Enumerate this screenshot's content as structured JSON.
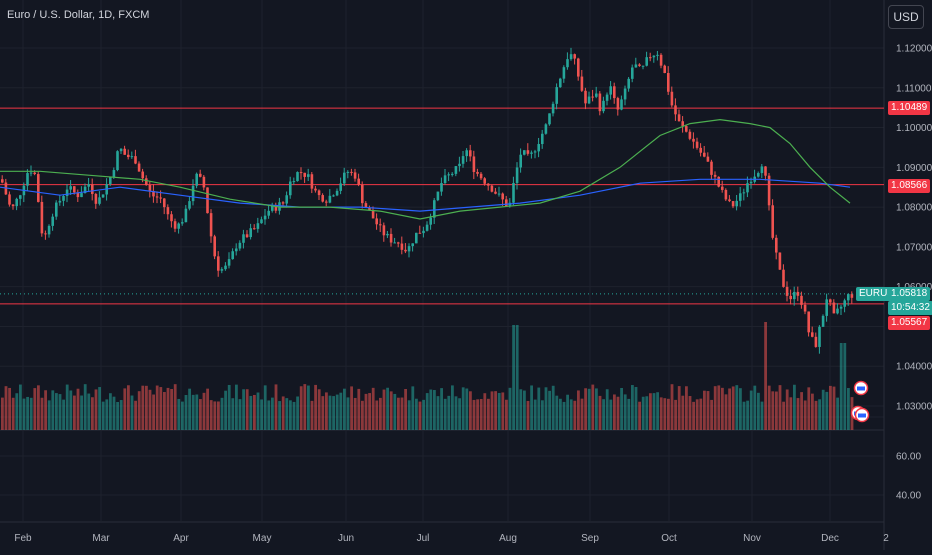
{
  "header": {
    "symbol_title": "Euro / U.S. Dollar, 1D, FXCM",
    "currency": "USD"
  },
  "colors": {
    "background": "#131722",
    "up": "#26a69a",
    "down": "#ef5350",
    "level_line": "#f23645",
    "ma_long": "#2962ff",
    "ma_short": "#4caf50"
  },
  "price_tags": {
    "level_upper": "1.10489",
    "level_middle": "1.08566",
    "level_lower": "1.05567",
    "current_symbol": "EURUSD",
    "current_price": "1.05818",
    "countdown": "10:54:32"
  },
  "chart_data": {
    "type": "candlestick",
    "x_tick_labels": [
      "Feb",
      "Mar",
      "Apr",
      "May",
      "Jun",
      "Jul",
      "Aug",
      "Sep",
      "Oct",
      "Nov",
      "Dec",
      "2"
    ],
    "price_tick_labels": [
      "1.12000",
      "1.11000",
      "1.10000",
      "1.09000",
      "1.08000",
      "1.07000",
      "1.06000",
      "1.04000",
      "1.03000"
    ],
    "volume_tick_labels": [
      "60.00",
      "40.00"
    ],
    "ylim": [
      1.0225,
      1.1265
    ],
    "volume_ylim": [
      30,
      78
    ],
    "horizontal_levels": [
      1.10489,
      1.08566,
      1.05567
    ],
    "current_price": 1.05818,
    "pivots": [
      [
        0,
        1.087
      ],
      [
        10,
        1.079
      ],
      [
        18,
        1.083
      ],
      [
        28,
        1.09
      ],
      [
        34,
        1.088
      ],
      [
        42,
        1.071
      ],
      [
        50,
        1.078
      ],
      [
        57,
        1.081
      ],
      [
        66,
        1.085
      ],
      [
        76,
        1.083
      ],
      [
        88,
        1.086
      ],
      [
        96,
        1.081
      ],
      [
        110,
        1.088
      ],
      [
        118,
        1.095
      ],
      [
        124,
        1.093
      ],
      [
        134,
        1.092
      ],
      [
        142,
        1.087
      ],
      [
        150,
        1.083
      ],
      [
        160,
        1.082
      ],
      [
        168,
        1.077
      ],
      [
        176,
        1.075
      ],
      [
        184,
        1.078
      ],
      [
        194,
        1.088
      ],
      [
        202,
        1.086
      ],
      [
        212,
        1.069
      ],
      [
        218,
        1.064
      ],
      [
        226,
        1.065
      ],
      [
        236,
        1.071
      ],
      [
        246,
        1.073
      ],
      [
        256,
        1.075
      ],
      [
        266,
        1.079
      ],
      [
        274,
        1.08
      ],
      [
        282,
        1.081
      ],
      [
        290,
        1.087
      ],
      [
        298,
        1.089
      ],
      [
        306,
        1.088
      ],
      [
        316,
        1.083
      ],
      [
        326,
        1.082
      ],
      [
        336,
        1.085
      ],
      [
        346,
        1.089
      ],
      [
        354,
        1.088
      ],
      [
        362,
        1.081
      ],
      [
        370,
        1.078
      ],
      [
        380,
        1.074
      ],
      [
        388,
        1.072
      ],
      [
        398,
        1.071
      ],
      [
        406,
        1.069
      ],
      [
        414,
        1.073
      ],
      [
        424,
        1.075
      ],
      [
        432,
        1.08
      ],
      [
        440,
        1.086
      ],
      [
        448,
        1.088
      ],
      [
        458,
        1.09
      ],
      [
        464,
        1.095
      ],
      [
        474,
        1.089
      ],
      [
        482,
        1.087
      ],
      [
        490,
        1.085
      ],
      [
        500,
        1.082
      ],
      [
        508,
        1.08
      ],
      [
        514,
        1.088
      ],
      [
        520,
        1.094
      ],
      [
        528,
        1.092
      ],
      [
        538,
        1.097
      ],
      [
        546,
        1.101
      ],
      [
        554,
        1.109
      ],
      [
        562,
        1.115
      ],
      [
        568,
        1.119
      ],
      [
        574,
        1.116
      ],
      [
        584,
        1.106
      ],
      [
        594,
        1.109
      ],
      [
        600,
        1.104
      ],
      [
        608,
        1.111
      ],
      [
        616,
        1.104
      ],
      [
        624,
        1.109
      ],
      [
        632,
        1.116
      ],
      [
        640,
        1.114
      ],
      [
        648,
        1.118
      ],
      [
        656,
        1.119
      ],
      [
        664,
        1.113
      ],
      [
        670,
        1.106
      ],
      [
        678,
        1.101
      ],
      [
        688,
        1.098
      ],
      [
        696,
        1.095
      ],
      [
        704,
        1.092
      ],
      [
        714,
        1.087
      ],
      [
        722,
        1.083
      ],
      [
        730,
        1.08
      ],
      [
        740,
        1.083
      ],
      [
        748,
        1.087
      ],
      [
        756,
        1.089
      ],
      [
        762,
        1.092
      ],
      [
        766,
        1.083
      ],
      [
        772,
        1.071
      ],
      [
        778,
        1.064
      ],
      [
        784,
        1.059
      ],
      [
        790,
        1.057
      ],
      [
        796,
        1.059
      ],
      [
        802,
        1.055
      ],
      [
        808,
        1.048
      ],
      [
        814,
        1.045
      ],
      [
        820,
        1.051
      ],
      [
        826,
        1.058
      ],
      [
        832,
        1.052
      ],
      [
        840,
        1.055
      ],
      [
        848,
        1.058
      ],
      [
        852,
        1.058
      ]
    ],
    "ma_long": [
      [
        0,
        1.085
      ],
      [
        60,
        1.083
      ],
      [
        120,
        1.085
      ],
      [
        180,
        1.083
      ],
      [
        240,
        1.081
      ],
      [
        300,
        1.08
      ],
      [
        360,
        1.08
      ],
      [
        420,
        1.079
      ],
      [
        470,
        1.08
      ],
      [
        520,
        1.081
      ],
      [
        580,
        1.083
      ],
      [
        640,
        1.086
      ],
      [
        700,
        1.087
      ],
      [
        760,
        1.087
      ],
      [
        820,
        1.086
      ],
      [
        850,
        1.085
      ]
    ],
    "ma_short": [
      [
        0,
        1.089
      ],
      [
        40,
        1.089
      ],
      [
        90,
        1.088
      ],
      [
        140,
        1.087
      ],
      [
        180,
        1.085
      ],
      [
        230,
        1.082
      ],
      [
        280,
        1.08
      ],
      [
        330,
        1.08
      ],
      [
        380,
        1.079
      ],
      [
        420,
        1.077
      ],
      [
        460,
        1.079
      ],
      [
        500,
        1.08
      ],
      [
        540,
        1.081
      ],
      [
        580,
        1.084
      ],
      [
        620,
        1.09
      ],
      [
        660,
        1.098
      ],
      [
        690,
        1.101
      ],
      [
        720,
        1.102
      ],
      [
        750,
        1.101
      ],
      [
        770,
        1.1
      ],
      [
        790,
        1.096
      ],
      [
        810,
        1.09
      ],
      [
        830,
        1.085
      ],
      [
        850,
        1.081
      ]
    ]
  }
}
